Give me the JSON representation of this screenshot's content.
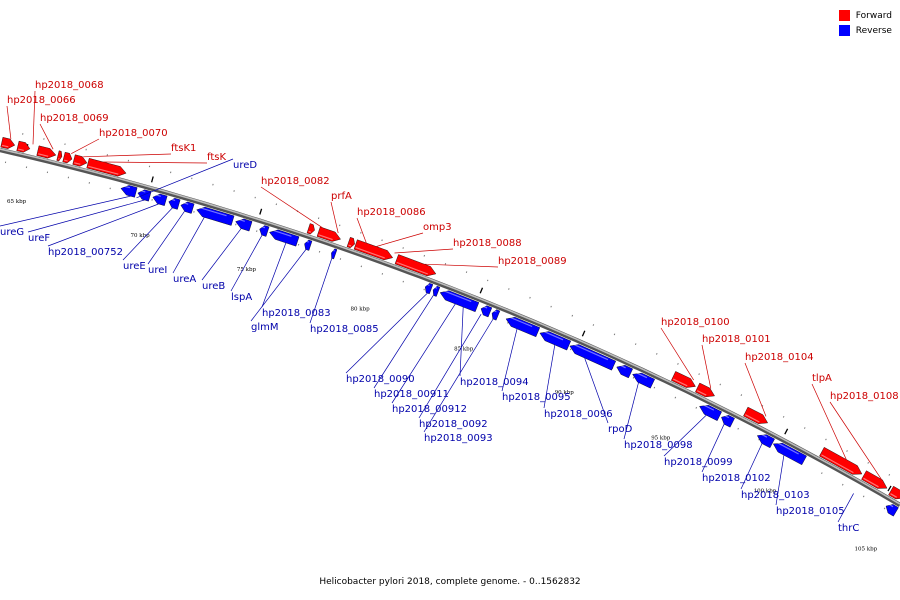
{
  "colors": {
    "forward": "#ff0000",
    "reverse": "#0000ff",
    "backbone": "#777777",
    "forward_label": "#cc0000",
    "reverse_label": "#0000aa"
  },
  "legend": {
    "forward": "Forward",
    "reverse": "Reverse"
  },
  "caption": "Helicobacter pylori 2018, complete genome. - 0..1562832",
  "ticks": [
    "65 kbp",
    "70 kbp",
    "75 kbp",
    "80 kbp",
    "85 kbp",
    "90 kbp",
    "95 kbp",
    "100 kbp",
    "105 kbp"
  ],
  "forward_labels": [
    "hp2018_0068",
    "hp2018_0066",
    "hp2018_0069",
    "hp2018_0070",
    "ftsK1",
    "ftsK",
    "hp2018_0082",
    "prfA",
    "hp2018_0086",
    "omp3",
    "hp2018_0088",
    "hp2018_0089",
    "hp2018_0100",
    "hp2018_0101",
    "hp2018_0104",
    "tlpA",
    "hp2018_0108"
  ],
  "reverse_labels": [
    "ureD",
    "ureG",
    "ureF",
    "hp2018_00752",
    "ureE",
    "ureI",
    "ureA",
    "ureB",
    "lspA",
    "hp2018_0083",
    "glmM",
    "hp2018_0085",
    "hp2018_0090",
    "hp2018_00911",
    "hp2018_00912",
    "hp2018_0092",
    "hp2018_0093",
    "hp2018_0094",
    "hp2018_0095",
    "hp2018_0096",
    "rpoD",
    "hp2018_0098",
    "hp2018_0099",
    "hp2018_0102",
    "hp2018_0103",
    "hp2018_0105",
    "thrC"
  ]
}
